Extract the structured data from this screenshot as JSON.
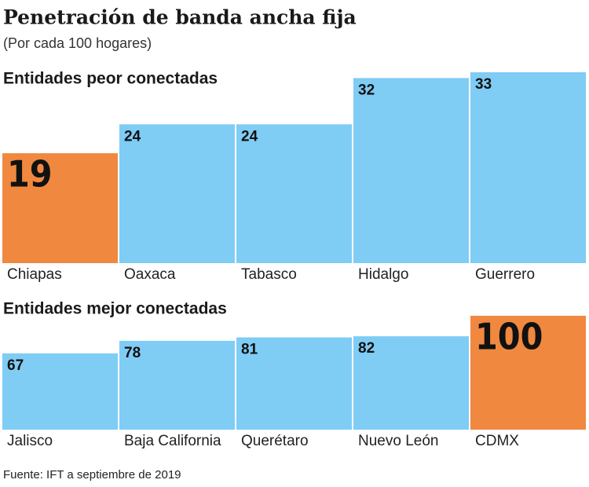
{
  "title": "Penetración de banda ancha fija",
  "subtitle": "(Por cada 100 hogares)",
  "source": "Fuente: IFT a septiembre de 2019",
  "chart_data": [
    {
      "type": "bar",
      "title": "Entidades peor conectadas",
      "categories": [
        "Chiapas",
        "Oaxaca",
        "Tabasco",
        "Hidalgo",
        "Guerrero"
      ],
      "values": [
        19,
        24,
        24,
        32,
        33
      ],
      "colors": [
        "#f0883f",
        "#7fccf5",
        "#7fccf5",
        "#7fccf5",
        "#7fccf5"
      ]
    },
    {
      "type": "bar",
      "title": "Entidades mejor conectadas",
      "categories": [
        "Jalisco",
        "Baja California",
        "Querétaro",
        "Nuevo León",
        "CDMX"
      ],
      "values": [
        67,
        78,
        81,
        82,
        100
      ],
      "colors": [
        "#7fccf5",
        "#7fccf5",
        "#7fccf5",
        "#7fccf5",
        "#f0883f"
      ]
    }
  ]
}
